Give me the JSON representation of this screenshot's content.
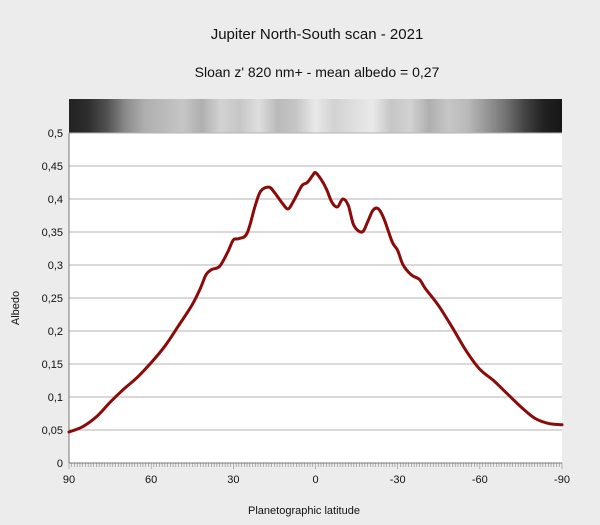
{
  "chart_data": {
    "type": "line",
    "title": "Jupiter North-South scan - 2021",
    "subtitle": "Sloan z' 820 nm+ - mean albedo = 0,27",
    "xlabel": "Planetographic latitude",
    "ylabel": "Albedo",
    "xlim": [
      90,
      -90
    ],
    "ylim": [
      0,
      0.5
    ],
    "x_ticks": [
      "90",
      "60",
      "30",
      "0",
      "-30",
      "-60",
      "-90"
    ],
    "y_ticks": [
      "0",
      "0,05",
      "0,1",
      "0,15",
      "0,2",
      "0,25",
      "0,3",
      "0,35",
      "0,4",
      "0,45",
      "0,5"
    ],
    "grid": true,
    "series_color": "#8b0a0a",
    "background_plot": "#ffffff",
    "series": [
      {
        "x": [
          90,
          85,
          80,
          75,
          70,
          65,
          60,
          55,
          50,
          45,
          42,
          40,
          38,
          35,
          32,
          30,
          28,
          25,
          22,
          20,
          17,
          15,
          12,
          10,
          8,
          5,
          3,
          1,
          0,
          -2,
          -4,
          -6,
          -8,
          -10,
          -12,
          -14,
          -17,
          -19,
          -21,
          -23,
          -25,
          -28,
          -30,
          -32,
          -35,
          -38,
          -40,
          -45,
          -50,
          -55,
          -60,
          -65,
          -70,
          -75,
          -80,
          -85,
          -90
        ],
        "values": [
          0.047,
          0.055,
          0.07,
          0.092,
          0.112,
          0.13,
          0.152,
          0.177,
          0.208,
          0.24,
          0.265,
          0.285,
          0.293,
          0.298,
          0.32,
          0.338,
          0.34,
          0.348,
          0.39,
          0.412,
          0.418,
          0.41,
          0.393,
          0.385,
          0.397,
          0.42,
          0.425,
          0.436,
          0.44,
          0.43,
          0.415,
          0.395,
          0.388,
          0.4,
          0.39,
          0.36,
          0.35,
          0.365,
          0.383,
          0.385,
          0.37,
          0.335,
          0.322,
          0.3,
          0.285,
          0.278,
          0.265,
          0.238,
          0.205,
          0.17,
          0.142,
          0.125,
          0.105,
          0.085,
          0.068,
          0.06,
          0.058
        ]
      }
    ],
    "scan_strip_brightness": [
      0.1,
      0.15,
      0.3,
      0.55,
      0.7,
      0.75,
      0.8,
      0.7,
      0.85,
      0.8,
      0.9,
      0.75,
      0.8,
      0.95,
      0.85,
      0.9,
      0.95,
      0.8,
      0.85,
      0.7,
      0.8,
      0.75,
      0.6,
      0.45,
      0.25,
      0.1,
      0.05
    ]
  }
}
